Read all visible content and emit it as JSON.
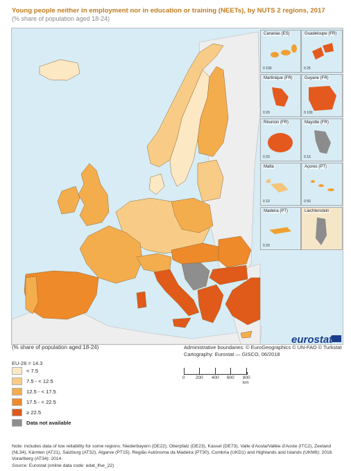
{
  "title": "Young people neither in employment nor in education or training (NEETs), by NUTS 2 regions, 2017",
  "subtitle": "(% share of population aged 18-24)",
  "insets": [
    {
      "name": "Canarias (ES)",
      "scale": "0  100",
      "fill": "#f0a030"
    },
    {
      "name": "Guadeloupe (FR)",
      "scale": "0  25",
      "fill": "#e45a1e"
    },
    {
      "name": "Martinique (FR)",
      "scale": "0  20",
      "fill": "#e45a1e"
    },
    {
      "name": "Guyane (FR)",
      "scale": "0  100",
      "fill": "#e45a1e"
    },
    {
      "name": "Réunion (FR)",
      "scale": "0  20",
      "fill": "#e45a1e"
    },
    {
      "name": "Mayotte (FR)",
      "scale": "0  15",
      "fill": "#8c8c8c"
    },
    {
      "name": "Malta",
      "scale": "0  10",
      "fill": "#f4c57a"
    },
    {
      "name": "Açores (PT)",
      "scale": "0  50",
      "fill": "#f0a030"
    },
    {
      "name": "Madeira (PT)",
      "scale": "0  20",
      "fill": "#f0a030"
    },
    {
      "name": "Liechtenstein",
      "scale": "0  5",
      "fill": "#8c8c8c"
    }
  ],
  "legend": {
    "caption": "(% share of population aged 18-24)",
    "eu": "EU-28 = 14.3",
    "classes": [
      {
        "label": "< 7.5",
        "color": "#fde8c4"
      },
      {
        "label": "7.5 - < 12.5",
        "color": "#f8cc86"
      },
      {
        "label": "12.5 - < 17.5",
        "color": "#f4ad4d"
      },
      {
        "label": "17.5 - < 22.5",
        "color": "#ee8a2a"
      },
      {
        "label": "≥ 22.5",
        "color": "#e05a1a"
      },
      {
        "label": "Data not available",
        "color": "#8e8e8e"
      }
    ]
  },
  "boundaries": {
    "line1": "Administrative boundaries: © EuroGeographics © UN-FAO © Turkstat",
    "line2": "Cartography: Eurostat — GISCO, 06/2018"
  },
  "scalebar": {
    "ticks": [
      "0",
      "200",
      "400",
      "600",
      "800 km"
    ]
  },
  "logo": "eurostat",
  "note": "Note: includes data of low reliability for some regions. Niederbayern (DE22), Oberpfalz (DE23), Kassel (DE73), Valle d'Aosta/Vallée d'Aoste (ITC2), Zeeland (NL34), Kärnten (AT21), Salzburg (AT32), Algarve (PT15), Região Autónoma da Madeira (PT30), Cumbria (UKD1) and Highlands and Islands (UKM6): 2016. Vorarlberg (AT34): 2014.",
  "source": {
    "label": "Source:",
    "text": "Eurostat (online data code: edat_lfse_22)"
  },
  "colors": {
    "water": "#d7ecf5",
    "nonEU": "#eeeeee",
    "border": "#8a6a3a"
  }
}
